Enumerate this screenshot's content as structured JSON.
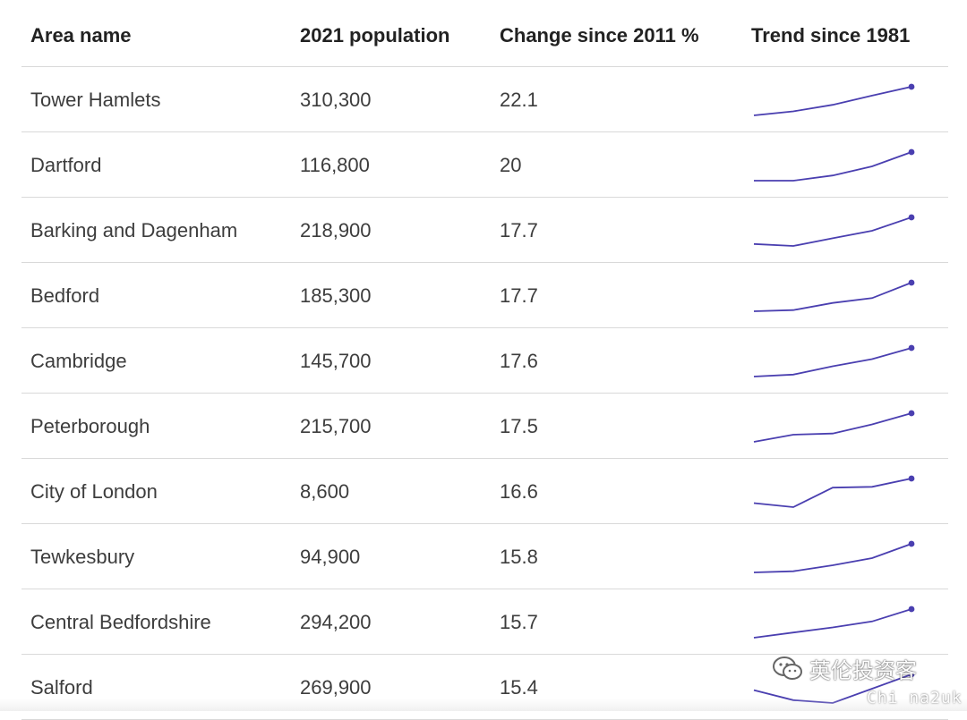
{
  "chart_data": {
    "type": "table",
    "columns": [
      "Area name",
      "2021 population",
      "Change since 2011 %",
      "Trend since 1981"
    ],
    "rows": [
      {
        "area": "Tower Hamlets",
        "population": "310,300",
        "change": "22.1",
        "trend": [
          0.0,
          0.14,
          0.37,
          0.69,
          1.0
        ]
      },
      {
        "area": "Dartford",
        "population": "116,800",
        "change": "20",
        "trend": [
          0.0,
          0.0,
          0.18,
          0.5,
          1.0
        ]
      },
      {
        "area": "Barking and Dagenham",
        "population": "218,900",
        "change": "17.7",
        "trend": [
          0.07,
          0.0,
          0.27,
          0.53,
          1.0
        ]
      },
      {
        "area": "Bedford",
        "population": "185,300",
        "change": "17.7",
        "trend": [
          0.0,
          0.04,
          0.29,
          0.46,
          1.0
        ]
      },
      {
        "area": "Cambridge",
        "population": "145,700",
        "change": "17.6",
        "trend": [
          0.0,
          0.07,
          0.36,
          0.61,
          1.0
        ]
      },
      {
        "area": "Peterborough",
        "population": "215,700",
        "change": "17.5",
        "trend": [
          0.0,
          0.25,
          0.29,
          0.61,
          1.0
        ]
      },
      {
        "area": "City of London",
        "population": "8,600",
        "change": "16.6",
        "trend": [
          0.14,
          0.0,
          0.68,
          0.71,
          1.0
        ]
      },
      {
        "area": "Tewkesbury",
        "population": "94,900",
        "change": "15.8",
        "trend": [
          0.0,
          0.04,
          0.25,
          0.5,
          1.0
        ]
      },
      {
        "area": "Central Bedfordshire",
        "population": "294,200",
        "change": "15.7",
        "trend": [
          0.0,
          0.18,
          0.36,
          0.57,
          1.0
        ]
      },
      {
        "area": "Salford",
        "population": "269,900",
        "change": "15.4",
        "trend": [
          0.45,
          0.1,
          0.0,
          0.5,
          1.0
        ]
      }
    ],
    "line_color": "#4a3fb0"
  },
  "watermark": {
    "text": "英伦投资客",
    "sub": "Chi na2uk",
    "icon": "wechat-icon"
  }
}
